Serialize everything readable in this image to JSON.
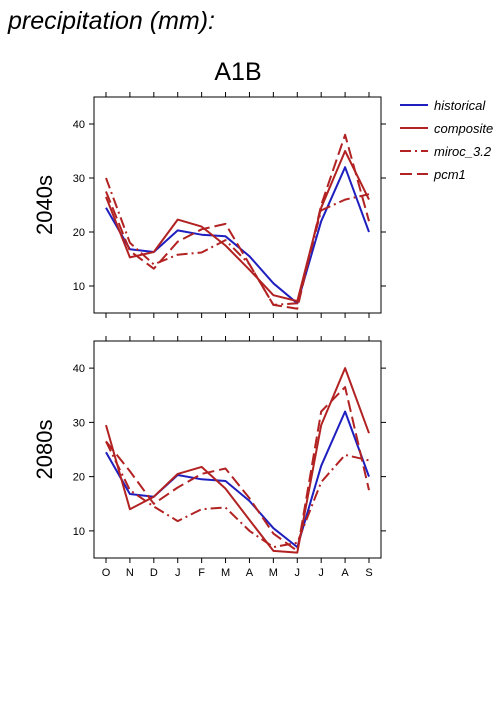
{
  "heading": "precipitation (mm):",
  "scenario": "A1B",
  "legend": [
    {
      "name": "historical",
      "color": "#1f1fbf",
      "dash": "solid"
    },
    {
      "name": "composite",
      "color": "#b22222",
      "dash": "solid"
    },
    {
      "name": "miroc_3.2",
      "color": "#b22222",
      "dash": "dashdot"
    },
    {
      "name": "pcm1",
      "color": "#b22222",
      "dash": "dashed"
    }
  ],
  "chart_data": [
    {
      "type": "line",
      "panel_label": "2040s",
      "categories": [
        "O",
        "N",
        "D",
        "J",
        "F",
        "M",
        "A",
        "M",
        "J",
        "J",
        "A",
        "S"
      ],
      "ylim": [
        5,
        45
      ],
      "yticks": [
        10,
        20,
        30,
        40
      ],
      "grid": false,
      "series": [
        {
          "name": "historical",
          "values": [
            24.5,
            16.8,
            16.3,
            20.3,
            19.5,
            19.2,
            15.5,
            10.5,
            6.8,
            22.0,
            32.0,
            20.0
          ]
        },
        {
          "name": "composite",
          "values": [
            26.5,
            15.3,
            16.3,
            22.3,
            21.0,
            17.5,
            13.0,
            8.3,
            7.2,
            24.5,
            35.0,
            26.0
          ]
        },
        {
          "name": "miroc_3.2",
          "values": [
            30.0,
            18.0,
            14.0,
            15.8,
            16.2,
            18.5,
            14.0,
            6.5,
            6.8,
            24.0,
            26.0,
            27.0
          ]
        },
        {
          "name": "pcm1",
          "values": [
            27.5,
            16.5,
            13.2,
            18.2,
            20.5,
            21.5,
            14.0,
            6.5,
            5.8,
            25.0,
            38.0,
            22.0
          ]
        }
      ]
    },
    {
      "type": "line",
      "panel_label": "2080s",
      "categories": [
        "O",
        "N",
        "D",
        "J",
        "F",
        "M",
        "A",
        "M",
        "J",
        "J",
        "A",
        "S"
      ],
      "ylim": [
        5,
        45
      ],
      "yticks": [
        10,
        20,
        30,
        40
      ],
      "grid": false,
      "series": [
        {
          "name": "historical",
          "values": [
            24.5,
            16.8,
            16.3,
            20.3,
            19.5,
            19.2,
            15.5,
            10.5,
            7.0,
            22.0,
            32.0,
            20.0
          ]
        },
        {
          "name": "composite",
          "values": [
            29.5,
            14.0,
            16.3,
            20.5,
            21.8,
            17.8,
            12.0,
            6.3,
            6.0,
            29.5,
            40.0,
            28.0
          ]
        },
        {
          "name": "miroc_3.2",
          "values": [
            26.5,
            17.5,
            14.5,
            11.8,
            14.0,
            14.3,
            10.0,
            7.0,
            7.8,
            19.0,
            24.0,
            23.0
          ]
        },
        {
          "name": "pcm1",
          "values": [
            26.5,
            21.0,
            15.0,
            18.0,
            20.5,
            21.5,
            16.0,
            9.5,
            6.3,
            32.0,
            36.5,
            17.5
          ]
        }
      ]
    }
  ]
}
